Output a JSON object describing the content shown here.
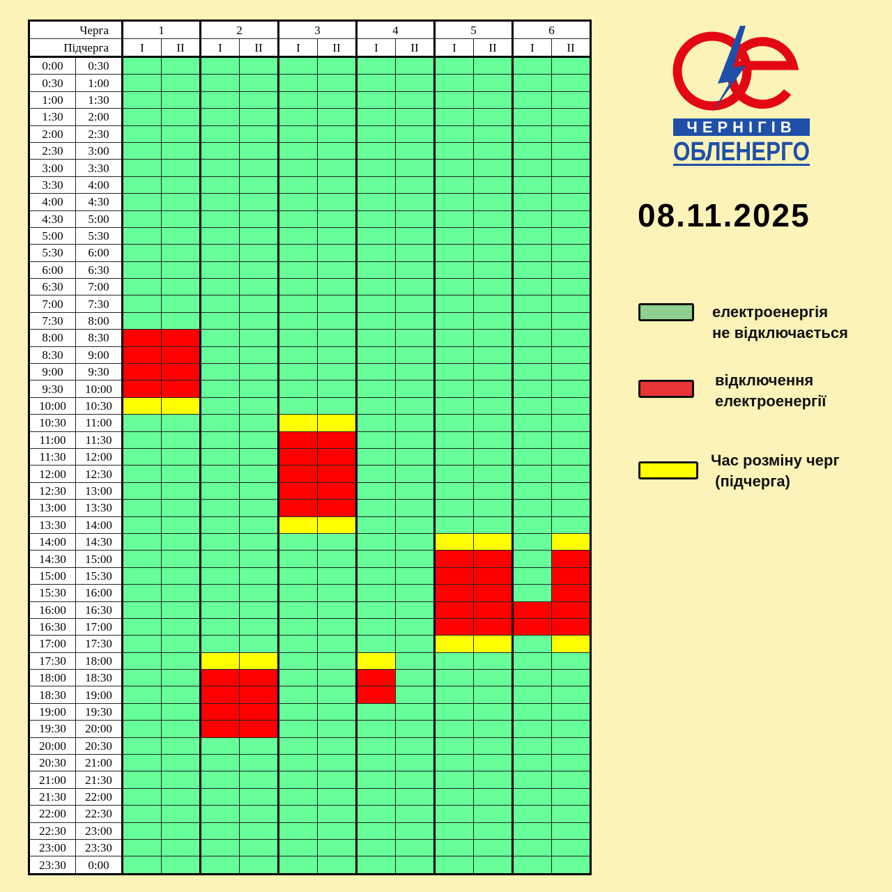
{
  "colors": {
    "on": "#66ff99",
    "off": "#ff0000",
    "switch": "#ffff00",
    "legend_on": "#8fcf8f",
    "legend_off": "#e83535",
    "legend_switch": "#ffff00",
    "background": "#fbf3b8",
    "logo_red": "#e30613",
    "logo_blue": "#1f4fa8"
  },
  "header": {
    "queue_label": "Черга",
    "subqueue_label": "Підчерга"
  },
  "queues": [
    {
      "label": "1",
      "subs": [
        {
          "label": "I",
          "off": [
            [
              "8:00",
              "10:00"
            ]
          ],
          "switch": [
            [
              "10:00",
              "10:30"
            ]
          ]
        },
        {
          "label": "II",
          "off": [
            [
              "8:00",
              "10:00"
            ]
          ],
          "switch": [
            [
              "10:00",
              "10:30"
            ]
          ]
        }
      ]
    },
    {
      "label": "2",
      "subs": [
        {
          "label": "I",
          "off": [
            [
              "18:00",
              "20:00"
            ]
          ],
          "switch": [
            [
              "17:30",
              "18:00"
            ]
          ]
        },
        {
          "label": "II",
          "off": [
            [
              "18:00",
              "20:00"
            ]
          ],
          "switch": [
            [
              "17:30",
              "18:00"
            ]
          ]
        }
      ]
    },
    {
      "label": "3",
      "subs": [
        {
          "label": "I",
          "off": [
            [
              "11:00",
              "13:30"
            ]
          ],
          "switch": [
            [
              "10:30",
              "11:00"
            ],
            [
              "13:30",
              "14:00"
            ]
          ]
        },
        {
          "label": "II",
          "off": [
            [
              "11:00",
              "13:30"
            ]
          ],
          "switch": [
            [
              "10:30",
              "11:00"
            ],
            [
              "13:30",
              "14:00"
            ]
          ]
        }
      ]
    },
    {
      "label": "4",
      "subs": [
        {
          "label": "I",
          "off": [
            [
              "18:00",
              "19:00"
            ]
          ],
          "switch": [
            [
              "17:30",
              "18:00"
            ]
          ]
        },
        {
          "label": "II",
          "off": [],
          "switch": []
        }
      ]
    },
    {
      "label": "5",
      "subs": [
        {
          "label": "I",
          "off": [
            [
              "14:30",
              "17:00"
            ]
          ],
          "switch": [
            [
              "14:00",
              "14:30"
            ],
            [
              "17:00",
              "17:30"
            ]
          ]
        },
        {
          "label": "II",
          "off": [
            [
              "14:30",
              "17:00"
            ]
          ],
          "switch": [
            [
              "14:00",
              "14:30"
            ],
            [
              "17:00",
              "17:30"
            ]
          ]
        }
      ]
    },
    {
      "label": "6",
      "subs": [
        {
          "label": "I",
          "off": [
            [
              "16:00",
              "17:00"
            ]
          ],
          "switch": []
        },
        {
          "label": "II",
          "off": [
            [
              "14:30",
              "17:00"
            ]
          ],
          "switch": [
            [
              "14:00",
              "14:30"
            ],
            [
              "17:00",
              "17:30"
            ]
          ]
        }
      ]
    }
  ],
  "times": [
    [
      "0:00",
      "0:30"
    ],
    [
      "0:30",
      "1:00"
    ],
    [
      "1:00",
      "1:30"
    ],
    [
      "1:30",
      "2:00"
    ],
    [
      "2:00",
      "2:30"
    ],
    [
      "2:30",
      "3:00"
    ],
    [
      "3:00",
      "3:30"
    ],
    [
      "3:30",
      "4:00"
    ],
    [
      "4:00",
      "4:30"
    ],
    [
      "4:30",
      "5:00"
    ],
    [
      "5:00",
      "5:30"
    ],
    [
      "5:30",
      "6:00"
    ],
    [
      "6:00",
      "6:30"
    ],
    [
      "6:30",
      "7:00"
    ],
    [
      "7:00",
      "7:30"
    ],
    [
      "7:30",
      "8:00"
    ],
    [
      "8:00",
      "8:30"
    ],
    [
      "8:30",
      "9:00"
    ],
    [
      "9:00",
      "9:30"
    ],
    [
      "9:30",
      "10:00"
    ],
    [
      "10:00",
      "10:30"
    ],
    [
      "10:30",
      "11:00"
    ],
    [
      "11:00",
      "11:30"
    ],
    [
      "11:30",
      "12:00"
    ],
    [
      "12:00",
      "12:30"
    ],
    [
      "12:30",
      "13:00"
    ],
    [
      "13:00",
      "13:30"
    ],
    [
      "13:30",
      "14:00"
    ],
    [
      "14:00",
      "14:30"
    ],
    [
      "14:30",
      "15:00"
    ],
    [
      "15:00",
      "15:30"
    ],
    [
      "15:30",
      "16:00"
    ],
    [
      "16:00",
      "16:30"
    ],
    [
      "16:30",
      "17:00"
    ],
    [
      "17:00",
      "17:30"
    ],
    [
      "17:30",
      "18:00"
    ],
    [
      "18:00",
      "18:30"
    ],
    [
      "18:30",
      "19:00"
    ],
    [
      "19:00",
      "19:30"
    ],
    [
      "19:30",
      "20:00"
    ],
    [
      "20:00",
      "20:30"
    ],
    [
      "20:30",
      "21:00"
    ],
    [
      "21:00",
      "21:30"
    ],
    [
      "21:30",
      "22:00"
    ],
    [
      "22:00",
      "22:30"
    ],
    [
      "22:30",
      "23:00"
    ],
    [
      "23:00",
      "23:30"
    ],
    [
      "23:30",
      "0:00"
    ]
  ],
  "logo": {
    "line1": "ЧЕРНІГІВ",
    "line2": "ОБЛЕНЕРГО"
  },
  "date": "08.11.2025",
  "legend": [
    {
      "icon": "green-swatch",
      "line1": "електроенергія",
      "line2": "не відключається"
    },
    {
      "icon": "red-swatch",
      "line1": "відключення",
      "line2": "електроенергії"
    },
    {
      "icon": "yellow-swatch",
      "line1": "Час розміну черг",
      "line2": " (підчерга)"
    }
  ]
}
